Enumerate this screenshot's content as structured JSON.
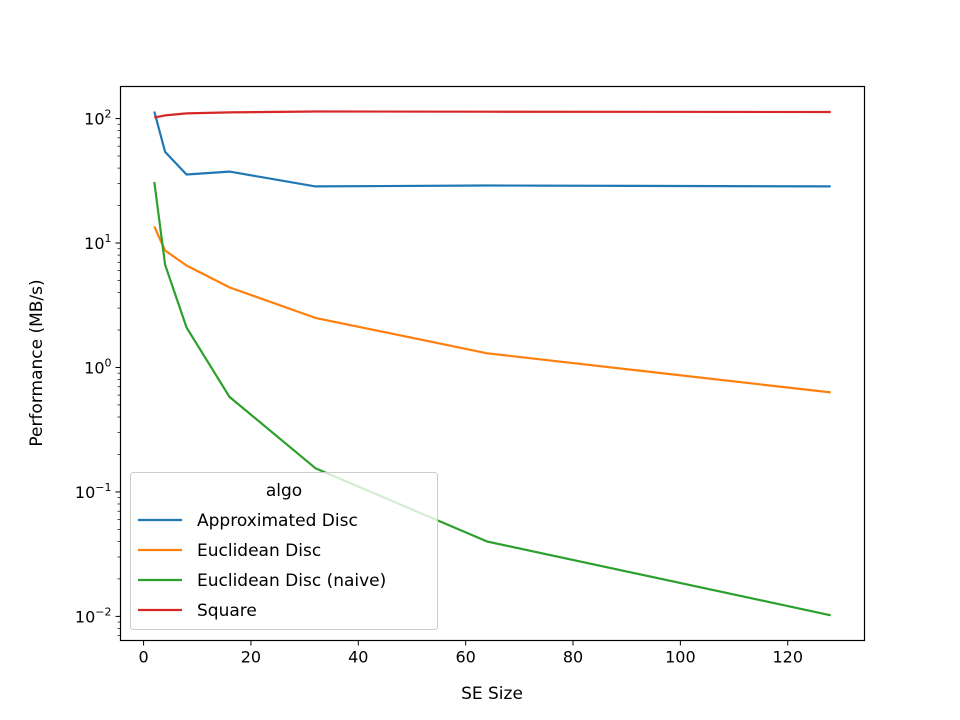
{
  "chart_data": {
    "type": "line",
    "title": "",
    "xlabel": "SE Size",
    "ylabel": "Performance (MB/s)",
    "xscale": "linear",
    "yscale": "log",
    "xlim": [
      -4.3,
      134.3
    ],
    "ylim": [
      0.0064,
      181
    ],
    "xticks": [
      0,
      20,
      40,
      60,
      80,
      100,
      120
    ],
    "yticks": [
      {
        "value": 0.01,
        "base": "10",
        "exp": "−2"
      },
      {
        "value": 0.1,
        "base": "10",
        "exp": "−1"
      },
      {
        "value": 1,
        "base": "10",
        "exp": "0"
      },
      {
        "value": 10,
        "base": "10",
        "exp": "1"
      },
      {
        "value": 100,
        "base": "10",
        "exp": "2"
      }
    ],
    "grid": false,
    "legend": {
      "title": "algo",
      "placement": "lower-left"
    },
    "x": [
      2,
      4,
      8,
      16,
      32,
      64,
      128
    ],
    "series": [
      {
        "name": "Approximated Disc",
        "color": "#1f77b4",
        "values": [
          114,
          54,
          35.5,
          37.5,
          28.5,
          29,
          28.5
        ]
      },
      {
        "name": "Euclidean Disc",
        "color": "#ff7f0e",
        "values": [
          13.6,
          8.7,
          6.6,
          4.4,
          2.5,
          1.3,
          0.63
        ]
      },
      {
        "name": "Euclidean Disc (naive)",
        "color": "#2ca02c",
        "values": [
          31,
          6.7,
          2.1,
          0.58,
          0.155,
          0.04,
          0.0102
        ]
      },
      {
        "name": "Square",
        "color": "#d62728",
        "values": [
          102,
          106,
          110,
          112,
          114,
          113.5,
          113
        ]
      }
    ]
  }
}
